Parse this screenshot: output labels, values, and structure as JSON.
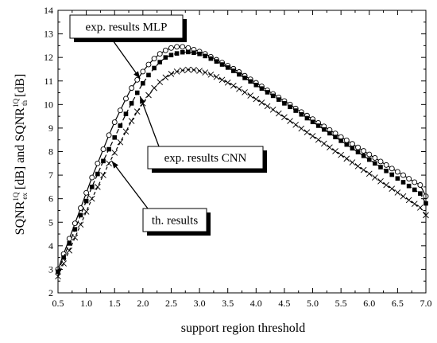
{
  "chart_data": {
    "type": "line",
    "xlabel": "support region threshold",
    "ylabel": {
      "part1": "SQNR",
      "sup1": "1Q",
      "sub1": "ex",
      "part2": " [dB] and SQNR",
      "sup2": "1Q",
      "sub2": "th",
      "part3": " [dB]"
    },
    "xlim": [
      0.5,
      7.0
    ],
    "ylim": [
      2,
      14
    ],
    "xticks": [
      "0.5",
      "1.0",
      "1.5",
      "2.0",
      "2.5",
      "3.0",
      "3.5",
      "4.0",
      "4.5",
      "5.0",
      "5.5",
      "6.0",
      "6.5",
      "7.0"
    ],
    "yticks": [
      "2",
      "3",
      "4",
      "5",
      "6",
      "7",
      "8",
      "9",
      "10",
      "11",
      "12",
      "13",
      "14"
    ],
    "grid": false,
    "series": [
      {
        "name": "exp. results MLP",
        "marker": "open-circle",
        "x": [
          0.5,
          0.6,
          0.7,
          0.8,
          0.9,
          1.0,
          1.1,
          1.2,
          1.3,
          1.4,
          1.5,
          1.6,
          1.7,
          1.8,
          1.9,
          2.0,
          2.1,
          2.2,
          2.3,
          2.4,
          2.5,
          2.6,
          2.7,
          2.8,
          2.9,
          3.0,
          3.1,
          3.2,
          3.3,
          3.4,
          3.5,
          3.6,
          3.7,
          3.8,
          3.9,
          4.0,
          4.1,
          4.2,
          4.3,
          4.4,
          4.5,
          4.6,
          4.7,
          4.8,
          4.9,
          5.0,
          5.1,
          5.2,
          5.3,
          5.4,
          5.5,
          5.6,
          5.7,
          5.8,
          5.9,
          6.0,
          6.1,
          6.2,
          6.3,
          6.4,
          6.5,
          6.6,
          6.7,
          6.8,
          6.9,
          7.0
        ],
        "y": [
          3.0,
          3.65,
          4.3,
          4.95,
          5.6,
          6.25,
          6.9,
          7.5,
          8.1,
          8.7,
          9.25,
          9.75,
          10.25,
          10.7,
          11.05,
          11.4,
          11.7,
          11.95,
          12.15,
          12.3,
          12.4,
          12.45,
          12.45,
          12.4,
          12.33,
          12.25,
          12.15,
          12.03,
          11.9,
          11.78,
          11.65,
          11.52,
          11.38,
          11.22,
          11.07,
          10.92,
          10.77,
          10.6,
          10.45,
          10.3,
          10.15,
          10.0,
          9.83,
          9.68,
          9.53,
          9.38,
          9.22,
          9.07,
          8.92,
          8.77,
          8.62,
          8.48,
          8.33,
          8.18,
          8.03,
          7.88,
          7.73,
          7.58,
          7.43,
          7.28,
          7.14,
          7.0,
          6.85,
          6.7,
          6.58,
          6.1
        ]
      },
      {
        "name": "exp. results CNN",
        "marker": "filled-square",
        "x": [
          0.5,
          0.6,
          0.7,
          0.8,
          0.9,
          1.0,
          1.1,
          1.2,
          1.3,
          1.4,
          1.5,
          1.6,
          1.7,
          1.8,
          1.9,
          2.0,
          2.1,
          2.2,
          2.3,
          2.4,
          2.5,
          2.6,
          2.7,
          2.8,
          2.9,
          3.0,
          3.1,
          3.2,
          3.3,
          3.4,
          3.5,
          3.6,
          3.7,
          3.8,
          3.9,
          4.0,
          4.1,
          4.2,
          4.3,
          4.4,
          4.5,
          4.6,
          4.7,
          4.8,
          4.9,
          5.0,
          5.1,
          5.2,
          5.3,
          5.4,
          5.5,
          5.6,
          5.7,
          5.8,
          5.9,
          6.0,
          6.1,
          6.2,
          6.3,
          6.4,
          6.5,
          6.6,
          6.7,
          6.8,
          6.9,
          7.0
        ],
        "y": [
          2.9,
          3.5,
          4.1,
          4.7,
          5.3,
          5.9,
          6.5,
          7.05,
          7.6,
          8.1,
          8.6,
          9.1,
          9.6,
          10.05,
          10.5,
          10.9,
          11.25,
          11.55,
          11.8,
          12.0,
          12.1,
          12.17,
          12.22,
          12.23,
          12.2,
          12.15,
          12.06,
          11.95,
          11.83,
          11.7,
          11.57,
          11.43,
          11.28,
          11.13,
          10.98,
          10.83,
          10.68,
          10.52,
          10.37,
          10.21,
          10.05,
          9.9,
          9.74,
          9.58,
          9.42,
          9.26,
          9.1,
          8.94,
          8.78,
          8.62,
          8.46,
          8.3,
          8.14,
          7.98,
          7.82,
          7.66,
          7.5,
          7.34,
          7.18,
          7.02,
          6.86,
          6.7,
          6.54,
          6.38,
          6.22,
          5.8
        ]
      },
      {
        "name": "th. results",
        "marker": "cross",
        "x": [
          0.5,
          0.6,
          0.7,
          0.8,
          0.9,
          1.0,
          1.1,
          1.2,
          1.3,
          1.4,
          1.5,
          1.6,
          1.7,
          1.8,
          1.9,
          2.0,
          2.1,
          2.2,
          2.3,
          2.4,
          2.5,
          2.6,
          2.7,
          2.8,
          2.9,
          3.0,
          3.1,
          3.2,
          3.3,
          3.4,
          3.5,
          3.6,
          3.7,
          3.8,
          3.9,
          4.0,
          4.1,
          4.2,
          4.3,
          4.4,
          4.5,
          4.6,
          4.7,
          4.8,
          4.9,
          5.0,
          5.1,
          5.2,
          5.3,
          5.4,
          5.5,
          5.6,
          5.7,
          5.8,
          5.9,
          6.0,
          6.1,
          6.2,
          6.3,
          6.4,
          6.5,
          6.6,
          6.7,
          6.8,
          6.9,
          7.0
        ],
        "y": [
          2.7,
          3.25,
          3.8,
          4.35,
          4.9,
          5.45,
          6.0,
          6.5,
          7.0,
          7.5,
          7.95,
          8.4,
          8.85,
          9.3,
          9.7,
          10.05,
          10.4,
          10.7,
          10.95,
          11.15,
          11.3,
          11.4,
          11.45,
          11.48,
          11.47,
          11.43,
          11.36,
          11.27,
          11.17,
          11.05,
          10.93,
          10.8,
          10.66,
          10.52,
          10.38,
          10.23,
          10.08,
          9.93,
          9.78,
          9.62,
          9.46,
          9.3,
          9.14,
          8.98,
          8.82,
          8.66,
          8.5,
          8.34,
          8.18,
          8.02,
          7.86,
          7.7,
          7.54,
          7.38,
          7.22,
          7.06,
          6.9,
          6.74,
          6.58,
          6.42,
          6.26,
          6.1,
          5.94,
          5.78,
          5.62,
          5.3
        ]
      }
    ],
    "annotations": [
      {
        "text": "exp. results MLP",
        "target_x": 1.95,
        "target_y": 11.1
      },
      {
        "text": "exp. results CNN",
        "target_x": 1.95,
        "target_y": 10.35
      },
      {
        "text": "th. results",
        "target_x": 1.45,
        "target_y": 7.6
      }
    ]
  }
}
